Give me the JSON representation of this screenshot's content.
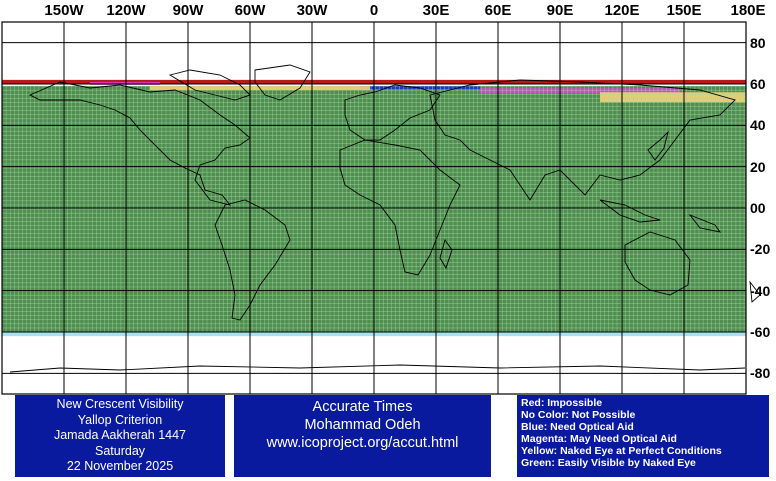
{
  "map": {
    "longitude_labels": [
      "150W",
      "120W",
      "90W",
      "60W",
      "30W",
      "0",
      "30E",
      "60E",
      "90E",
      "120E",
      "150E",
      "180E"
    ],
    "latitude_labels": [
      "80",
      "60",
      "40",
      "20",
      "00",
      "-20",
      "-40",
      "-60",
      "-80"
    ],
    "colors": {
      "red": "#b00000",
      "blue": "#1a2bd8",
      "magenta": "#e040e0",
      "yellow": "#ffd070",
      "green": "#2f7a2f",
      "cyan": "#9adcef",
      "background": "#ffffff"
    },
    "visibility_bands": [
      {
        "category": "green",
        "lat_from": -60,
        "lat_to": 59
      },
      {
        "category": "cyan",
        "lat_from": -62,
        "lat_to": -60
      }
    ]
  },
  "panel_left": {
    "lines": [
      "New Crescent Visibility",
      "Yallop Criterion",
      "Jamada Aakherah 1447",
      "Saturday",
      "22 November 2025"
    ]
  },
  "panel_center": {
    "lines": [
      "Accurate Times",
      "Mohammad Odeh",
      "www.icoproject.org/accut.html"
    ]
  },
  "legend": {
    "lines": [
      "Red: Impossible",
      "No Color: Not Possible",
      "Blue: Need Optical Aid",
      "Magenta: May Need Optical Aid",
      "Yellow: Naked Eye at Perfect Conditions",
      "Green: Easily Visible by Naked Eye"
    ]
  }
}
